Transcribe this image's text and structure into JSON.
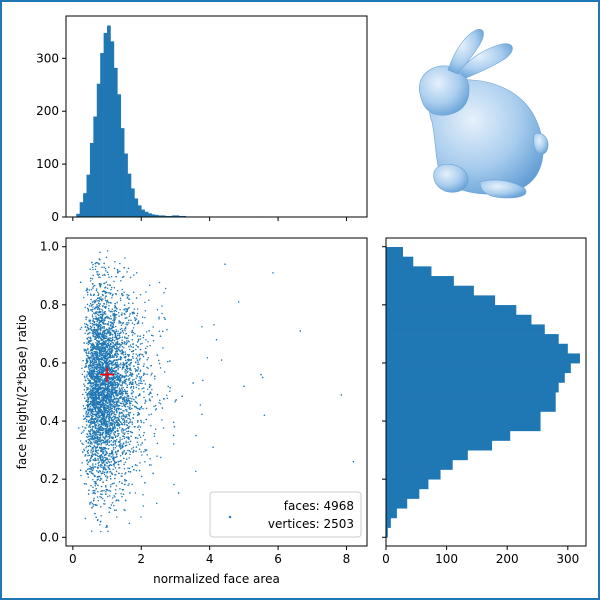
{
  "theme": {
    "accent": "#1f77b4",
    "marker": "#ff0000",
    "frame": "#1f77b4"
  },
  "chart_data": [
    {
      "type": "histogram",
      "panel": "top",
      "x_range": [
        -0.2,
        8.6
      ],
      "xticks": [
        0,
        2,
        4,
        6,
        8
      ],
      "y_range": [
        0,
        380
      ],
      "yticks": [
        0,
        100,
        200,
        300
      ],
      "ytick_labels": [
        "0",
        "100",
        "200",
        "300"
      ],
      "show_xtick_labels": false,
      "bin_start": 0.1,
      "bin_width": 0.1,
      "counts": [
        6,
        28,
        45,
        80,
        140,
        190,
        252,
        310,
        348,
        362,
        332,
        282,
        232,
        168,
        120,
        82,
        54,
        35,
        22,
        14,
        10,
        7,
        5,
        4,
        3,
        3,
        2,
        2,
        3,
        3,
        2,
        2,
        1,
        1,
        1,
        1,
        1,
        1,
        1,
        0,
        0,
        0,
        1,
        0,
        0,
        1,
        0,
        0,
        0,
        0,
        0,
        0,
        0,
        0,
        1
      ]
    },
    {
      "type": "image",
      "panel": "top-right",
      "description_icon": "bunny-mesh"
    },
    {
      "type": "scatter",
      "panel": "main",
      "x_range": [
        -0.2,
        8.6
      ],
      "xticks": [
        0,
        2,
        4,
        6,
        8
      ],
      "xtick_labels": [
        "0",
        "2",
        "4",
        "6",
        "8"
      ],
      "y_range": [
        -0.03,
        1.03
      ],
      "yticks": [
        0.0,
        0.2,
        0.4,
        0.6,
        0.8,
        1.0
      ],
      "ytick_labels": [
        "0.0",
        "0.2",
        "0.4",
        "0.6",
        "0.8",
        "1.0"
      ],
      "xlabel": "normalized face area",
      "ylabel": "face height/(2*base) ratio",
      "n_points": 4968,
      "mean_marker": {
        "x": 1.0,
        "y": 0.56
      },
      "outliers": [
        [
          4.45,
          0.94
        ],
        [
          5.85,
          0.91
        ],
        [
          6.65,
          0.71
        ],
        [
          7.85,
          0.49
        ],
        [
          8.2,
          0.26
        ],
        [
          5.6,
          0.42
        ],
        [
          5.0,
          0.52
        ],
        [
          5.5,
          0.56
        ],
        [
          4.35,
          0.61
        ],
        [
          4.1,
          0.31
        ],
        [
          3.8,
          0.54
        ],
        [
          5.55,
          0.55
        ],
        [
          4.85,
          0.81
        ],
        [
          3.6,
          0.35
        ],
        [
          4.2,
          0.68
        ]
      ],
      "legend": {
        "line1": "faces: 4968",
        "line2": "vertices: 2503",
        "position": "lower right"
      }
    },
    {
      "type": "histogram-horizontal",
      "panel": "right",
      "x_range": [
        0,
        330
      ],
      "xticks": [
        0,
        100,
        200,
        300
      ],
      "xtick_labels": [
        "0",
        "100",
        "200",
        "300"
      ],
      "y_range": [
        -0.03,
        1.03
      ],
      "show_ytick_labels": false,
      "bin_start": 0.0,
      "bin_width": 0.0333,
      "counts": [
        3,
        8,
        18,
        35,
        55,
        70,
        90,
        110,
        135,
        175,
        205,
        255,
        255,
        280,
        280,
        285,
        295,
        305,
        320,
        300,
        285,
        262,
        240,
        215,
        180,
        145,
        112,
        75,
        45,
        28
      ]
    }
  ]
}
